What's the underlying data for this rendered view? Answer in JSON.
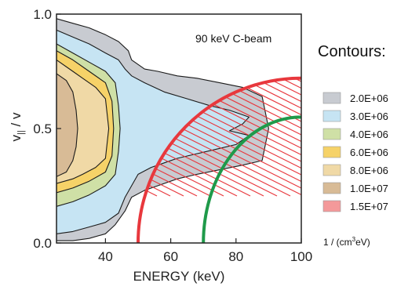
{
  "chart_data": {
    "type": "contour",
    "annotation": "90 keV  C-beam",
    "xlabel": "ENERGY (keV)",
    "ylabel_main": "v",
    "ylabel_sub": "||",
    "ylabel_rest": " / v",
    "xlim": [
      25,
      100
    ],
    "ylim": [
      0,
      1
    ],
    "x_ticks": [
      40,
      60,
      80,
      100
    ],
    "y_ticks": [
      {
        "value": 0,
        "label": "0.0"
      },
      {
        "value": 0.5,
        "label": "0.5"
      },
      {
        "value": 1,
        "label": "1.0"
      }
    ],
    "legend": {
      "title": "Contours:",
      "unit_prefix": "1 / (cm",
      "unit_sup": "3",
      "unit_suffix": "eV)",
      "levels": [
        {
          "label": "2.0E+06",
          "color": "#c8cbd1"
        },
        {
          "label": "3.0E+06",
          "color": "#c6e4f3"
        },
        {
          "label": "4.0E+06",
          "color": "#cfe0a6"
        },
        {
          "label": "6.0E+06",
          "color": "#f6d268"
        },
        {
          "label": "8.0E+06",
          "color": "#f0d9a6"
        },
        {
          "label": "1.0E+07",
          "color": "#d8bb96"
        },
        {
          "label": "1.5E+07",
          "color": "#f4999a"
        }
      ]
    },
    "contour_regions": [
      {
        "level": "2.0E+06",
        "color": "#c8cbd1",
        "outline": [
          [
            25,
            0.98
          ],
          [
            30,
            0.96
          ],
          [
            35,
            0.94
          ],
          [
            40,
            0.91
          ],
          [
            44,
            0.88
          ],
          [
            47,
            0.84
          ],
          [
            48,
            0.8
          ],
          [
            52,
            0.76
          ],
          [
            56,
            0.75
          ],
          [
            62,
            0.73
          ],
          [
            68,
            0.72
          ],
          [
            75,
            0.7
          ],
          [
            82,
            0.68
          ],
          [
            88,
            0.64
          ],
          [
            90,
            0.5
          ],
          [
            88,
            0.36
          ],
          [
            82,
            0.34
          ],
          [
            75,
            0.32
          ],
          [
            68,
            0.3
          ],
          [
            62,
            0.28
          ],
          [
            56,
            0.25
          ],
          [
            52,
            0.23
          ],
          [
            48,
            0.2
          ],
          [
            46,
            0.14
          ],
          [
            43,
            0.08
          ],
          [
            40,
            0.04
          ],
          [
            35,
            0.02
          ],
          [
            30,
            0.01
          ],
          [
            25,
            0.01
          ]
        ]
      },
      {
        "level": "3.0E+06",
        "color": "#c6e4f3",
        "outline": [
          [
            25,
            0.93
          ],
          [
            30,
            0.9
          ],
          [
            35,
            0.87
          ],
          [
            40,
            0.83
          ],
          [
            44,
            0.8
          ],
          [
            46,
            0.76
          ],
          [
            48,
            0.73
          ],
          [
            52,
            0.7
          ],
          [
            58,
            0.66
          ],
          [
            65,
            0.63
          ],
          [
            72,
            0.6
          ],
          [
            78,
            0.58
          ],
          [
            84,
            0.55
          ],
          [
            82,
            0.52
          ],
          [
            78,
            0.49
          ],
          [
            84,
            0.47
          ],
          [
            80,
            0.43
          ],
          [
            74,
            0.41
          ],
          [
            68,
            0.39
          ],
          [
            62,
            0.37
          ],
          [
            58,
            0.35
          ],
          [
            54,
            0.33
          ],
          [
            50,
            0.3
          ],
          [
            48,
            0.25
          ],
          [
            46,
            0.2
          ],
          [
            44,
            0.13
          ],
          [
            40,
            0.09
          ],
          [
            35,
            0.07
          ],
          [
            30,
            0.05
          ],
          [
            25,
            0.04
          ]
        ]
      },
      {
        "level": "4.0E+06",
        "color": "#cfe0a6",
        "outline": [
          [
            25,
            0.87
          ],
          [
            30,
            0.83
          ],
          [
            35,
            0.79
          ],
          [
            40,
            0.75
          ],
          [
            43,
            0.7
          ],
          [
            44,
            0.6
          ],
          [
            44.5,
            0.5
          ],
          [
            44,
            0.4
          ],
          [
            43,
            0.3
          ],
          [
            40,
            0.25
          ],
          [
            35,
            0.21
          ],
          [
            30,
            0.18
          ],
          [
            25,
            0.16
          ]
        ]
      },
      {
        "level": "6.0E+06",
        "color": "#f6d268",
        "outline": [
          [
            25,
            0.84
          ],
          [
            30,
            0.8
          ],
          [
            35,
            0.75
          ],
          [
            40,
            0.7
          ],
          [
            42,
            0.62
          ],
          [
            42.5,
            0.5
          ],
          [
            42,
            0.38
          ],
          [
            40,
            0.31
          ],
          [
            35,
            0.27
          ],
          [
            30,
            0.24
          ],
          [
            25,
            0.22
          ]
        ]
      },
      {
        "level": "8.0E+06",
        "color": "#f0d9a6",
        "outline": [
          [
            25,
            0.8
          ],
          [
            30,
            0.75
          ],
          [
            33,
            0.72
          ],
          [
            37,
            0.68
          ],
          [
            40,
            0.63
          ],
          [
            41,
            0.5
          ],
          [
            40,
            0.37
          ],
          [
            37,
            0.33
          ],
          [
            33,
            0.3
          ],
          [
            30,
            0.28
          ],
          [
            25,
            0.26
          ]
        ]
      },
      {
        "level": "1.0E+07",
        "color": "#d8bb96",
        "outline": [
          [
            25,
            0.74
          ],
          [
            28,
            0.71
          ],
          [
            30,
            0.66
          ],
          [
            31,
            0.58
          ],
          [
            31.5,
            0.5
          ],
          [
            31,
            0.42
          ],
          [
            30,
            0.36
          ],
          [
            28,
            0.31
          ],
          [
            25,
            0.29
          ]
        ]
      }
    ],
    "red_arc": {
      "x0": 50,
      "x_end": 100,
      "y_end": 0.72,
      "color": "#e8383d"
    },
    "green_arc": {
      "x0": 70,
      "x_end": 100,
      "y_end": 0.55,
      "color": "#1f9a4a"
    },
    "hatch_color": "#e8383d"
  }
}
